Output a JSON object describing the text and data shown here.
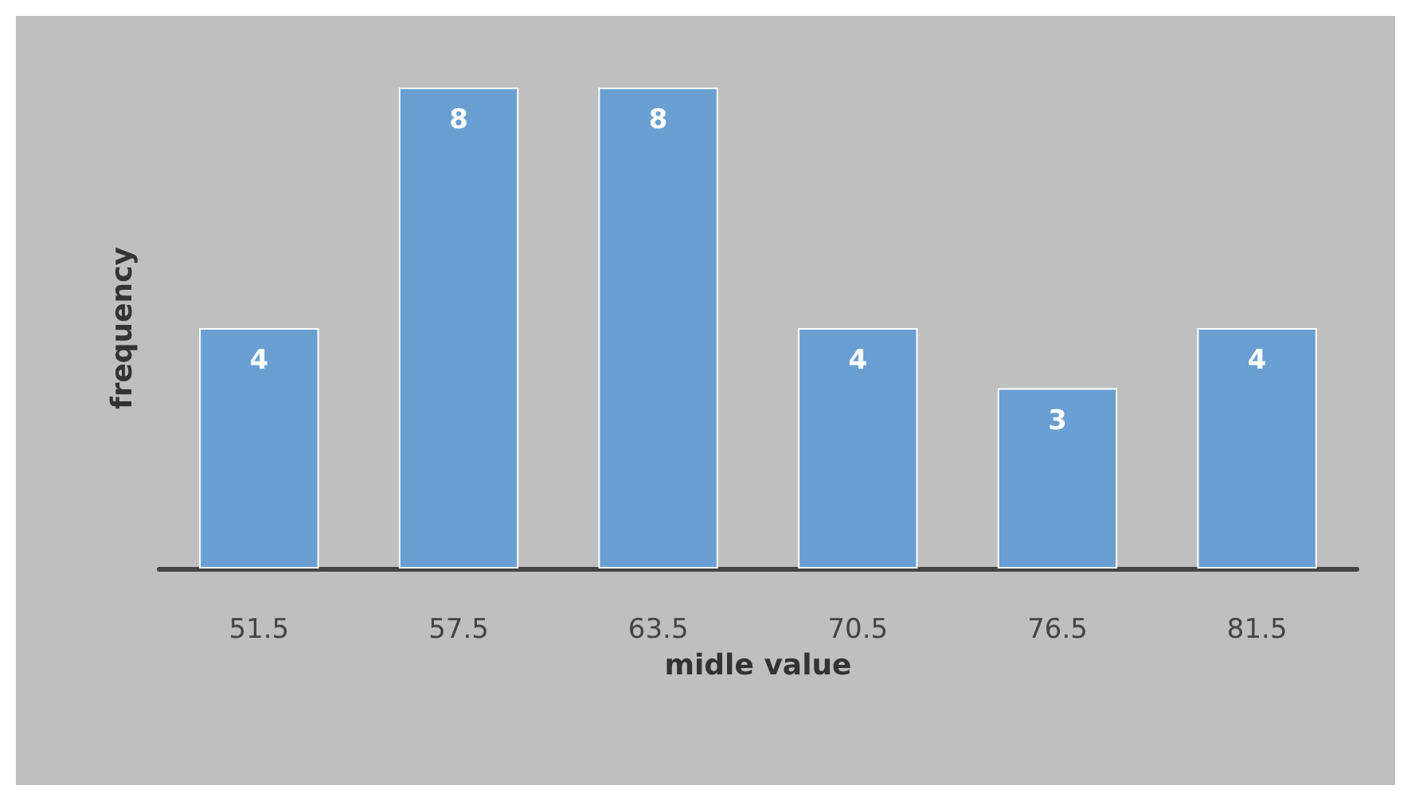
{
  "chart_data": {
    "type": "bar",
    "xlabel": "midle value",
    "ylabel": "frequency",
    "categories": [
      "51.5",
      "57.5",
      "63.5",
      "70.5",
      "76.5",
      "81.5"
    ],
    "values": [
      4,
      8,
      8,
      4,
      3,
      4
    ],
    "color": "#6a9fd2",
    "data_labels": true
  }
}
